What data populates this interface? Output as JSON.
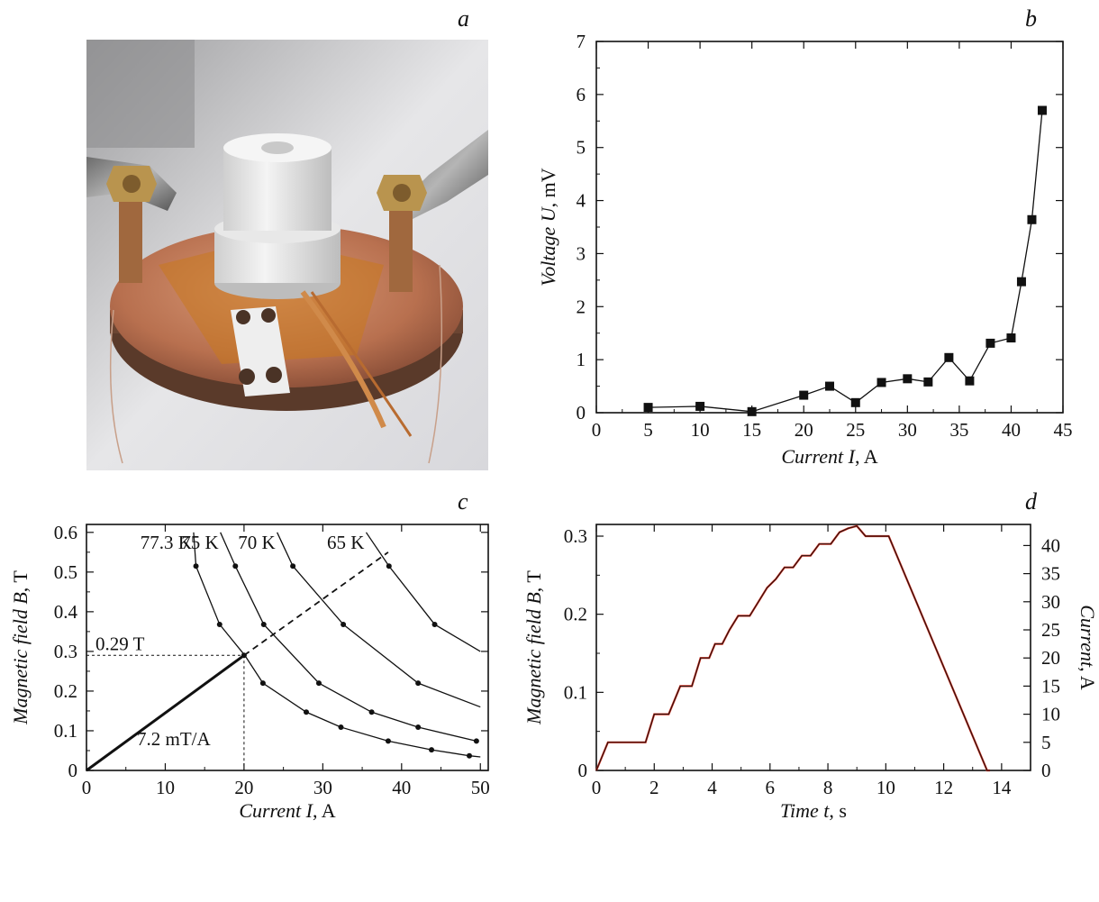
{
  "panel_letters": {
    "a": "a",
    "b": "b",
    "c": "c",
    "d": "d"
  },
  "photo": {
    "description_icon": "photo-experimental-setup"
  },
  "chart_data": [
    {
      "id": "b",
      "type": "line",
      "xlabel_italic": "Current I",
      "xlabel_unit": ", A",
      "ylabel_italic": "Voltage U",
      "ylabel_unit": ", mV",
      "xlim": [
        0,
        45
      ],
      "ylim": [
        0,
        7
      ],
      "xticks": [
        "0",
        "5",
        "10",
        "15",
        "20",
        "25",
        "30",
        "35",
        "40",
        "45"
      ],
      "yticks": [
        "0",
        "1",
        "2",
        "3",
        "4",
        "5",
        "6",
        "7"
      ],
      "marker": "square",
      "series": [
        {
          "x": [
            5,
            10,
            15,
            20,
            22.5,
            25,
            27.5,
            30,
            32,
            34,
            36,
            38,
            40,
            41,
            42,
            43
          ],
          "y": [
            0.1,
            0.12,
            0.02,
            0.33,
            0.5,
            0.19,
            0.57,
            0.64,
            0.58,
            1.04,
            0.6,
            1.31,
            1.41,
            2.47,
            3.64,
            5.7
          ]
        }
      ]
    },
    {
      "id": "c",
      "type": "line",
      "xlabel_italic": "Current I",
      "xlabel_unit": ", A",
      "ylabel_italic": "Magnetic field B",
      "ylabel_unit": ", T",
      "xlim": [
        0,
        51
      ],
      "ylim": [
        0,
        0.62
      ],
      "xticks": [
        "0",
        "10",
        "20",
        "30",
        "40",
        "50"
      ],
      "yticks": [
        "0",
        "0.1",
        "0.2",
        "0.3",
        "0.4",
        "0.5",
        "0.6"
      ],
      "series": [
        {
          "name": "77.3 K",
          "x": [
            13.6,
            13.9,
            16.9,
            20.1,
            22.4,
            27.9,
            32.3,
            38.3,
            43.8,
            48.6,
            50
          ],
          "y": [
            0.6,
            0.515,
            0.368,
            0.29,
            0.22,
            0.147,
            0.109,
            0.074,
            0.052,
            0.037,
            0.034
          ],
          "dots": [
            1,
            2,
            4,
            5,
            6,
            7,
            8,
            9
          ]
        },
        {
          "name": "75 K",
          "x": [
            17,
            18.9,
            22.5,
            29.5,
            36.2,
            42.1,
            49.5
          ],
          "y": [
            0.6,
            0.515,
            0.368,
            0.22,
            0.147,
            0.109,
            0.074
          ],
          "dots": [
            1,
            2,
            3,
            4,
            5,
            6
          ]
        },
        {
          "name": "70 K",
          "x": [
            24.2,
            26.2,
            32.6,
            42.1,
            50
          ],
          "y": [
            0.6,
            0.515,
            0.368,
            0.22,
            0.16
          ],
          "dots": [
            1,
            2,
            3
          ]
        },
        {
          "name": "65 K",
          "x": [
            35.5,
            38.4,
            44.2,
            50
          ],
          "y": [
            0.6,
            0.515,
            0.368,
            0.3
          ],
          "dots": [
            1,
            2
          ]
        }
      ],
      "load_line": {
        "slope_label": "7.2 mT/A",
        "x": [
          0,
          20
        ],
        "y": [
          0,
          0.29
        ],
        "dashed_x": [
          20,
          38.3
        ],
        "dashed_y": [
          0.29,
          0.55
        ]
      },
      "marker_point": {
        "x": 20,
        "y": 0.29,
        "label": "0.29 T"
      }
    },
    {
      "id": "d",
      "type": "line",
      "xlabel_italic": "Time t",
      "xlabel_unit": ", s",
      "ylabel_italic": "Magnetic field B",
      "ylabel_unit": ", T",
      "y2label_italic": "Current",
      "y2label_unit": ", A",
      "xlim": [
        0,
        15
      ],
      "ylim": [
        0,
        0.315
      ],
      "y2lim": [
        0,
        43.75
      ],
      "xticks": [
        "0",
        "2",
        "4",
        "6",
        "8",
        "10",
        "12",
        "14"
      ],
      "yticks": [
        "0",
        "0.1",
        "0.2",
        "0.3"
      ],
      "y2ticks": [
        "0",
        "5",
        "10",
        "15",
        "20",
        "25",
        "30",
        "35",
        "40"
      ],
      "series": [
        {
          "color": "#cc2a1a",
          "x": [
            0,
            0.4,
            1.7,
            2.0,
            2.5,
            2.9,
            3.3,
            3.6,
            3.9,
            4.1,
            4.35,
            4.6,
            4.9,
            5.3,
            5.6,
            5.9,
            6.2,
            6.5,
            6.8,
            7.1,
            7.4,
            7.7,
            8.1,
            8.4,
            8.7,
            9.0,
            9.3,
            9.6,
            10.1,
            13.5,
            13.6
          ],
          "y": [
            0,
            0.036,
            0.036,
            0.072,
            0.072,
            0.108,
            0.108,
            0.144,
            0.144,
            0.162,
            0.162,
            0.18,
            0.198,
            0.198,
            0.216,
            0.234,
            0.245,
            0.26,
            0.26,
            0.275,
            0.275,
            0.29,
            0.29,
            0.305,
            0.31,
            0.313,
            0.3,
            0.3,
            0.3,
            0,
            0
          ]
        }
      ]
    }
  ]
}
